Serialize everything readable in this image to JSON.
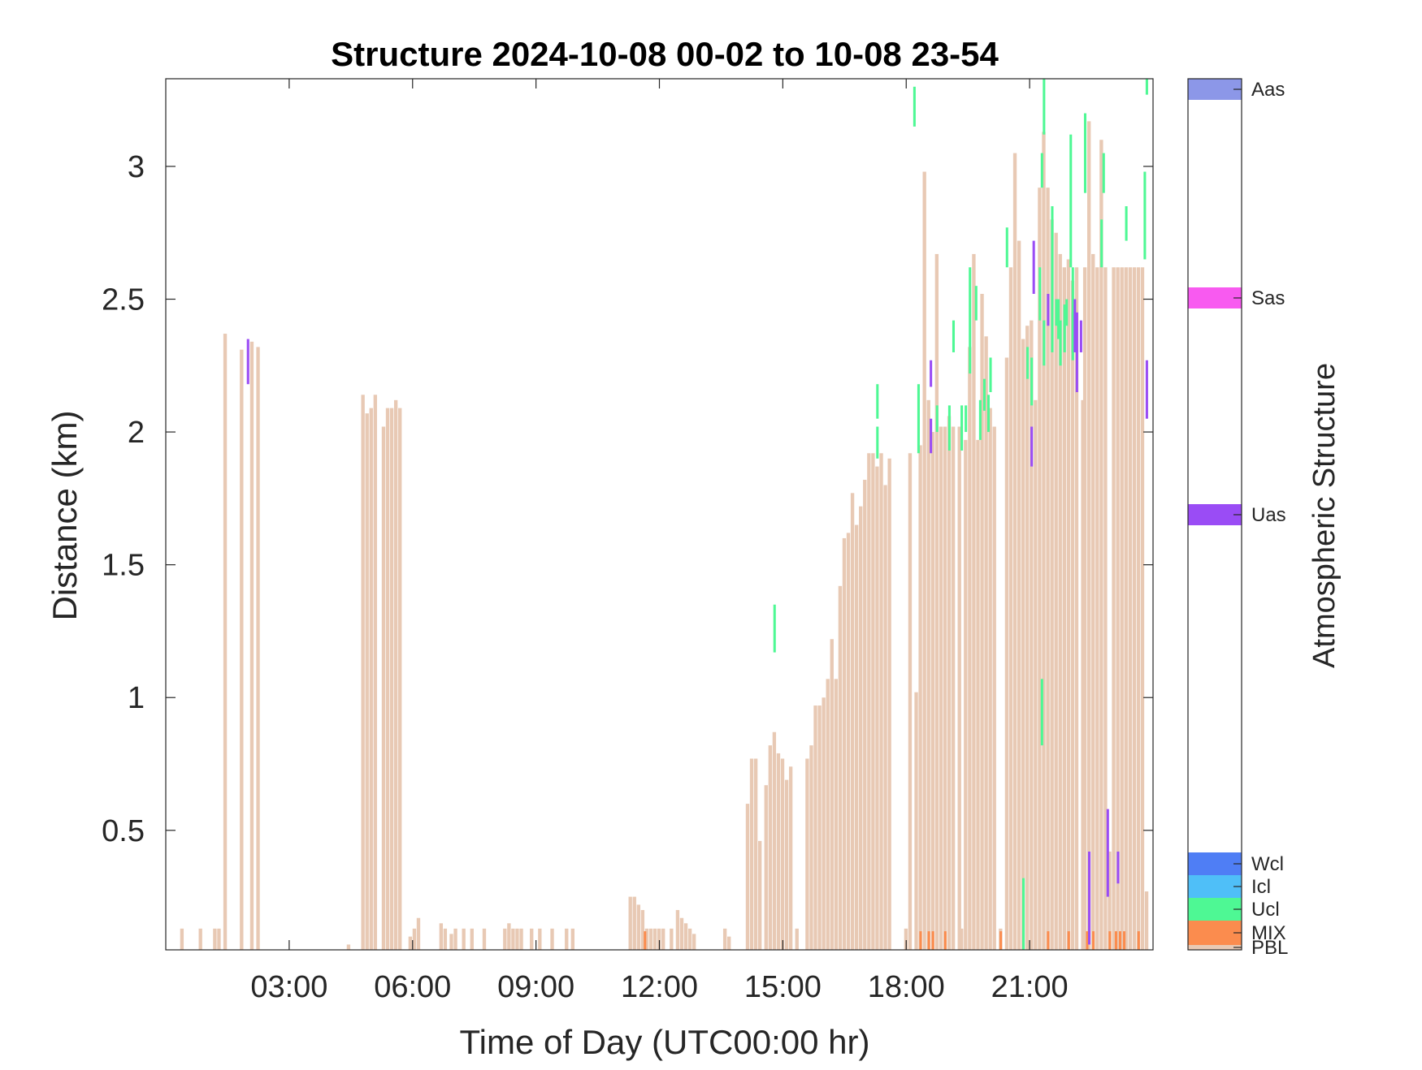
{
  "colors": {
    "PBL": "#e8c9b4",
    "MIX": "#fb8c4e",
    "Ucl": "#4ef894",
    "Icl": "#4fbff8",
    "Wcl": "#4f7ef5",
    "Uas": "#9a4cf5",
    "Sas": "#f85af0",
    "Aas": "#8c97e8"
  },
  "chart_data": {
    "type": "heatmap",
    "title": "Structure 2024-10-08 00-02 to 10-08 23-54",
    "xlabel": "Time of Day (UTC00:00 hr)",
    "ylabel": "Distance (km)",
    "x_unit": "hours",
    "xlim": [
      0,
      24
    ],
    "ylim": [
      0.05,
      3.33
    ],
    "x_ticks": [
      3,
      6,
      9,
      12,
      15,
      18,
      21
    ],
    "x_tick_labels": [
      "03:00",
      "06:00",
      "09:00",
      "12:00",
      "15:00",
      "18:00",
      "21:00"
    ],
    "y_ticks": [
      0.5,
      1,
      1.5,
      2,
      2.5,
      3
    ],
    "y_tick_labels": [
      "0.5",
      "1",
      "1.5",
      "2",
      "2.5",
      "3"
    ],
    "bin_width_hours": 0.1,
    "pbl_top_km": [
      [
        0.4,
        0.13
      ],
      [
        0.85,
        0.13
      ],
      [
        1.2,
        0.13
      ],
      [
        1.3,
        0.13
      ],
      [
        1.45,
        2.37
      ],
      [
        1.85,
        2.31
      ],
      [
        2.1,
        2.34
      ],
      [
        2.25,
        2.32
      ],
      [
        4.45,
        0.07
      ],
      [
        4.8,
        2.14
      ],
      [
        4.9,
        2.07
      ],
      [
        5.0,
        2.09
      ],
      [
        5.1,
        2.14
      ],
      [
        5.3,
        2.02
      ],
      [
        5.4,
        2.09
      ],
      [
        5.5,
        2.09
      ],
      [
        5.6,
        2.12
      ],
      [
        5.7,
        2.09
      ],
      [
        5.95,
        0.1
      ],
      [
        6.05,
        0.13
      ],
      [
        6.15,
        0.17
      ],
      [
        6.7,
        0.15
      ],
      [
        6.8,
        0.13
      ],
      [
        6.95,
        0.11
      ],
      [
        7.05,
        0.13
      ],
      [
        7.25,
        0.13
      ],
      [
        7.45,
        0.13
      ],
      [
        7.75,
        0.13
      ],
      [
        8.25,
        0.13
      ],
      [
        8.35,
        0.15
      ],
      [
        8.45,
        0.13
      ],
      [
        8.55,
        0.13
      ],
      [
        8.65,
        0.13
      ],
      [
        8.9,
        0.13
      ],
      [
        9.1,
        0.13
      ],
      [
        9.4,
        0.13
      ],
      [
        9.75,
        0.13
      ],
      [
        9.9,
        0.13
      ],
      [
        11.3,
        0.25
      ],
      [
        11.4,
        0.25
      ],
      [
        11.5,
        0.22
      ],
      [
        11.6,
        0.2
      ],
      [
        11.7,
        0.13
      ],
      [
        11.8,
        0.13
      ],
      [
        11.9,
        0.13
      ],
      [
        12.0,
        0.13
      ],
      [
        12.1,
        0.13
      ],
      [
        12.3,
        0.13
      ],
      [
        12.45,
        0.2
      ],
      [
        12.55,
        0.17
      ],
      [
        12.65,
        0.15
      ],
      [
        12.75,
        0.13
      ],
      [
        12.85,
        0.11
      ],
      [
        13.6,
        0.13
      ],
      [
        13.7,
        0.1
      ],
      [
        14.15,
        0.6
      ],
      [
        14.25,
        0.77
      ],
      [
        14.35,
        0.77
      ],
      [
        14.45,
        0.46
      ],
      [
        14.6,
        0.67
      ],
      [
        14.7,
        0.82
      ],
      [
        14.8,
        0.87
      ],
      [
        14.9,
        0.79
      ],
      [
        15.0,
        0.77
      ],
      [
        15.1,
        0.69
      ],
      [
        15.2,
        0.74
      ],
      [
        15.35,
        0.13
      ],
      [
        15.6,
        0.77
      ],
      [
        15.7,
        0.82
      ],
      [
        15.8,
        0.97
      ],
      [
        15.9,
        0.97
      ],
      [
        16.0,
        1.0
      ],
      [
        16.1,
        1.07
      ],
      [
        16.2,
        1.22
      ],
      [
        16.3,
        1.07
      ],
      [
        16.4,
        1.42
      ],
      [
        16.5,
        1.6
      ],
      [
        16.6,
        1.62
      ],
      [
        16.7,
        1.77
      ],
      [
        16.8,
        1.65
      ],
      [
        16.9,
        1.72
      ],
      [
        17.0,
        1.82
      ],
      [
        17.1,
        1.92
      ],
      [
        17.2,
        1.92
      ],
      [
        17.3,
        1.87
      ],
      [
        17.4,
        1.92
      ],
      [
        17.5,
        1.8
      ],
      [
        17.6,
        1.9
      ],
      [
        18.0,
        0.13
      ],
      [
        18.1,
        1.92
      ],
      [
        18.25,
        1.02
      ],
      [
        18.35,
        1.95
      ],
      [
        18.45,
        2.98
      ],
      [
        18.55,
        2.12
      ],
      [
        18.65,
        2.0
      ],
      [
        18.75,
        2.67
      ],
      [
        18.85,
        2.02
      ],
      [
        18.95,
        2.02
      ],
      [
        19.05,
        2.06
      ],
      [
        19.15,
        2.02
      ],
      [
        19.3,
        2.02
      ],
      [
        19.35,
        0.13
      ],
      [
        19.45,
        1.97
      ],
      [
        19.55,
        2.32
      ],
      [
        19.65,
        2.67
      ],
      [
        19.75,
        1.97
      ],
      [
        19.85,
        2.52
      ],
      [
        19.95,
        2.36
      ],
      [
        20.05,
        2.09
      ],
      [
        20.15,
        2.02
      ],
      [
        20.3,
        0.13
      ],
      [
        20.45,
        2.28
      ],
      [
        20.55,
        2.62
      ],
      [
        20.65,
        3.05
      ],
      [
        20.75,
        2.72
      ],
      [
        20.85,
        2.35
      ],
      [
        20.95,
        2.4
      ],
      [
        21.05,
        2.42
      ],
      [
        21.15,
        2.12
      ],
      [
        21.25,
        2.92
      ],
      [
        21.35,
        3.13
      ],
      [
        21.45,
        2.92
      ],
      [
        21.55,
        2.8
      ],
      [
        21.65,
        2.75
      ],
      [
        21.75,
        2.67
      ],
      [
        21.85,
        2.62
      ],
      [
        21.95,
        2.65
      ],
      [
        22.05,
        2.57
      ],
      [
        22.15,
        2.62
      ],
      [
        22.3,
        2.12
      ],
      [
        22.35,
        2.62
      ],
      [
        22.45,
        3.17
      ],
      [
        22.55,
        2.67
      ],
      [
        22.65,
        2.62
      ],
      [
        22.75,
        3.1
      ],
      [
        22.85,
        2.62
      ],
      [
        22.95,
        0.42
      ],
      [
        23.05,
        2.62
      ],
      [
        23.15,
        2.62
      ],
      [
        23.25,
        2.62
      ],
      [
        23.35,
        2.62
      ],
      [
        23.45,
        2.62
      ],
      [
        23.55,
        2.62
      ],
      [
        23.65,
        2.62
      ],
      [
        23.75,
        2.62
      ],
      [
        23.85,
        0.27
      ]
    ],
    "layers": [
      [
        2.0,
        2.18,
        2.35,
        "Uas"
      ],
      [
        14.8,
        1.17,
        1.35,
        "Ucl"
      ],
      [
        11.65,
        0.05,
        0.12,
        "MIX"
      ],
      [
        17.3,
        1.9,
        2.02,
        "Ucl"
      ],
      [
        17.3,
        2.05,
        2.18,
        "Ucl"
      ],
      [
        18.2,
        3.15,
        3.3,
        "Ucl"
      ],
      [
        18.3,
        1.92,
        2.18,
        "Ucl"
      ],
      [
        18.35,
        0.05,
        0.12,
        "MIX"
      ],
      [
        18.55,
        0.05,
        0.12,
        "MIX"
      ],
      [
        18.6,
        1.92,
        2.05,
        "Uas"
      ],
      [
        18.6,
        2.17,
        2.27,
        "Uas"
      ],
      [
        18.65,
        0.05,
        0.12,
        "MIX"
      ],
      [
        18.75,
        2.0,
        2.1,
        "Ucl"
      ],
      [
        18.95,
        0.05,
        0.12,
        "MIX"
      ],
      [
        19.05,
        1.93,
        2.1,
        "Ucl"
      ],
      [
        19.15,
        2.3,
        2.42,
        "Ucl"
      ],
      [
        19.35,
        1.93,
        2.1,
        "Ucl"
      ],
      [
        19.45,
        2.0,
        2.1,
        "Ucl"
      ],
      [
        19.55,
        2.22,
        2.62,
        "Ucl"
      ],
      [
        19.7,
        2.42,
        2.55,
        "Ucl"
      ],
      [
        19.8,
        1.97,
        2.12,
        "Ucl"
      ],
      [
        19.9,
        2.08,
        2.2,
        "Ucl"
      ],
      [
        20.0,
        2.0,
        2.14,
        "Ucl"
      ],
      [
        20.05,
        2.15,
        2.28,
        "Ucl"
      ],
      [
        20.3,
        0.05,
        0.12,
        "MIX"
      ],
      [
        20.45,
        2.62,
        2.77,
        "Ucl"
      ],
      [
        20.85,
        0.05,
        0.32,
        "Ucl"
      ],
      [
        20.95,
        2.2,
        2.32,
        "Ucl"
      ],
      [
        21.05,
        1.87,
        2.02,
        "Uas"
      ],
      [
        21.05,
        2.1,
        2.28,
        "Ucl"
      ],
      [
        21.1,
        2.52,
        2.72,
        "Uas"
      ],
      [
        21.25,
        2.42,
        2.62,
        "Ucl"
      ],
      [
        21.3,
        0.82,
        1.07,
        "Ucl"
      ],
      [
        21.3,
        2.92,
        3.05,
        "Ucl"
      ],
      [
        21.35,
        2.25,
        2.42,
        "Ucl"
      ],
      [
        21.35,
        3.12,
        3.33,
        "Ucl"
      ],
      [
        21.45,
        0.05,
        0.12,
        "MIX"
      ],
      [
        21.45,
        2.4,
        2.52,
        "Uas"
      ],
      [
        21.55,
        2.3,
        2.85,
        "Ucl"
      ],
      [
        21.65,
        2.4,
        2.5,
        "Ucl"
      ],
      [
        21.7,
        2.35,
        2.5,
        "Ucl"
      ],
      [
        21.75,
        2.25,
        2.42,
        "Ucl"
      ],
      [
        21.85,
        2.3,
        2.48,
        "Ucl"
      ],
      [
        21.9,
        2.4,
        2.5,
        "Ucl"
      ],
      [
        21.95,
        0.05,
        0.12,
        "MIX"
      ],
      [
        22.0,
        2.62,
        3.12,
        "Ucl"
      ],
      [
        22.05,
        2.3,
        2.62,
        "Ucl"
      ],
      [
        22.05,
        2.27,
        2.45,
        "Ucl"
      ],
      [
        22.1,
        2.3,
        2.5,
        "Uas"
      ],
      [
        22.15,
        2.15,
        2.45,
        "Uas"
      ],
      [
        22.25,
        2.3,
        2.42,
        "Uas"
      ],
      [
        22.35,
        2.9,
        3.2,
        "Ucl"
      ],
      [
        22.4,
        0.05,
        0.12,
        "MIX"
      ],
      [
        22.45,
        0.07,
        0.42,
        "Uas"
      ],
      [
        22.55,
        0.05,
        0.12,
        "MIX"
      ],
      [
        22.75,
        2.62,
        2.8,
        "Ucl"
      ],
      [
        22.8,
        2.9,
        3.05,
        "Ucl"
      ],
      [
        22.9,
        0.25,
        0.58,
        "Uas"
      ],
      [
        22.95,
        0.05,
        0.12,
        "MIX"
      ],
      [
        23.1,
        0.05,
        0.12,
        "MIX"
      ],
      [
        23.15,
        0.3,
        0.42,
        "Uas"
      ],
      [
        23.2,
        0.05,
        0.12,
        "MIX"
      ],
      [
        23.3,
        0.05,
        0.12,
        "MIX"
      ],
      [
        23.35,
        2.72,
        2.85,
        "Ucl"
      ],
      [
        23.65,
        0.05,
        0.12,
        "MIX"
      ],
      [
        23.8,
        2.65,
        2.98,
        "Ucl"
      ],
      [
        23.85,
        2.05,
        2.27,
        "Uas"
      ],
      [
        23.85,
        3.27,
        3.33,
        "Ucl"
      ]
    ],
    "colorbar": {
      "label": "Atmospheric Structure",
      "classes": [
        "PBL",
        "MIX",
        "Ucl",
        "Icl",
        "Wcl",
        "Uas",
        "Sas",
        "Aas"
      ],
      "class_labels": [
        "PBL",
        "MIX",
        "Ucl",
        "Icl",
        "Wcl",
        "Uas",
        "Sas",
        "Aas"
      ]
    }
  }
}
